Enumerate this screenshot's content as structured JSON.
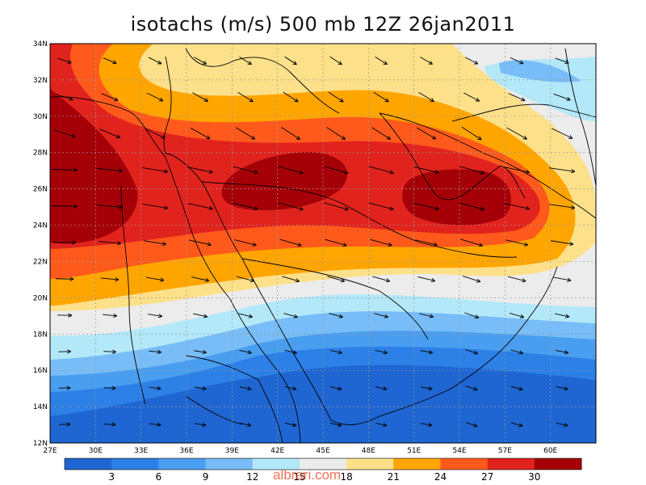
{
  "title": "isotachs (m/s) 500 mb 12Z 26jan2011",
  "watermark": "albrari.com",
  "map": {
    "lon_labels": [
      "27E",
      "30E",
      "33E",
      "36E",
      "39E",
      "42E",
      "45E",
      "48E",
      "51E",
      "54E",
      "57E",
      "60E"
    ],
    "lat_labels": [
      "12N",
      "14N",
      "16N",
      "18N",
      "20N",
      "22N",
      "24N",
      "26N",
      "28N",
      "30N",
      "32N",
      "34N"
    ],
    "lon_range": [
      27,
      63
    ],
    "lat_range": [
      12,
      34
    ],
    "grid": true
  },
  "colorbar": {
    "labels": [
      "3",
      "6",
      "9",
      "12",
      "15",
      "18",
      "21",
      "24",
      "27",
      "30"
    ],
    "colors": [
      "#1f66d2",
      "#2c80e6",
      "#4a9ef0",
      "#78bdf7",
      "#b3e8f9",
      "#ececec",
      "#fde08a",
      "#ffa500",
      "#ff5a1c",
      "#e1231e",
      "#a50008"
    ]
  },
  "palette": {
    "v3": "#1f66d2",
    "v6": "#2c80e6",
    "v9": "#4a9ef0",
    "v12": "#78bdf7",
    "v15": "#b3e8f9",
    "v18": "#ececec",
    "v21": "#fde08a",
    "v24": "#ffa500",
    "v27": "#ff5a1c",
    "v30": "#e1231e",
    "v33": "#a50008"
  }
}
